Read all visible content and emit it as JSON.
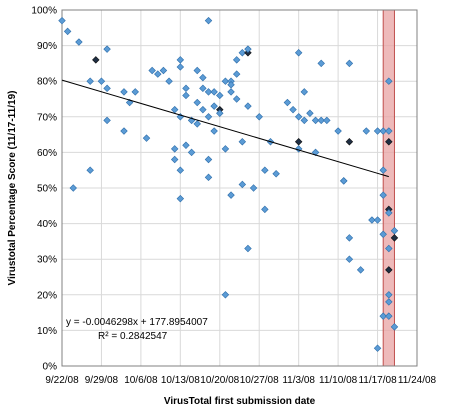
{
  "chart_data": {
    "type": "scatter",
    "title": "",
    "xlabel": "VirusTotal first submission date",
    "ylabel": "Virustotal Percentage Score (11/17-11/19)",
    "x_tick_labels": [
      "9/22/08",
      "9/29/08",
      "10/6/08",
      "10/13/08",
      "10/20/08",
      "10/27/08",
      "11/3/08",
      "11/10/08",
      "11/17/08",
      "11/24/08"
    ],
    "y_tick_labels": [
      "0%",
      "10%",
      "20%",
      "30%",
      "40%",
      "50%",
      "60%",
      "70%",
      "80%",
      "90%",
      "100%"
    ],
    "xlim": [
      "2008-09-22",
      "2008-11-24"
    ],
    "ylim": [
      0,
      100
    ],
    "grid": true,
    "legend": "none",
    "trendline": {
      "equation": "y = -0.0046298x + 177.8954007",
      "r_squared": "R² = 0.2842547",
      "start": [
        "2008-09-22",
        80.3
      ],
      "end": [
        "2008-11-19",
        53.2
      ]
    },
    "highlight_region": {
      "from": "2008-11-18",
      "to": "2008-11-20",
      "color": "#e8a3a3"
    },
    "colors": {
      "point": "#5b9bd5",
      "point_edge": "#2e6eaa",
      "dark_point": "#1f2f44",
      "region_edge": "#c0504d"
    },
    "points": [
      {
        "x": "2008-09-22",
        "y": 97
      },
      {
        "x": "2008-09-23",
        "y": 94
      },
      {
        "x": "2008-09-24",
        "y": 50
      },
      {
        "x": "2008-09-25",
        "y": 91
      },
      {
        "x": "2008-09-27",
        "y": 55
      },
      {
        "x": "2008-09-27",
        "y": 80
      },
      {
        "x": "2008-09-28",
        "y": 86,
        "dark": true
      },
      {
        "x": "2008-09-29",
        "y": 80
      },
      {
        "x": "2008-09-30",
        "y": 78
      },
      {
        "x": "2008-09-30",
        "y": 69
      },
      {
        "x": "2008-09-30",
        "y": 89
      },
      {
        "x": "2008-10-03",
        "y": 77
      },
      {
        "x": "2008-10-03",
        "y": 66
      },
      {
        "x": "2008-10-04",
        "y": 74
      },
      {
        "x": "2008-10-05",
        "y": 77
      },
      {
        "x": "2008-10-07",
        "y": 64
      },
      {
        "x": "2008-10-08",
        "y": 83
      },
      {
        "x": "2008-10-09",
        "y": 82
      },
      {
        "x": "2008-10-10",
        "y": 83
      },
      {
        "x": "2008-10-11",
        "y": 80
      },
      {
        "x": "2008-10-12",
        "y": 61
      },
      {
        "x": "2008-10-12",
        "y": 58
      },
      {
        "x": "2008-10-12",
        "y": 72
      },
      {
        "x": "2008-10-13",
        "y": 86
      },
      {
        "x": "2008-10-13",
        "y": 84
      },
      {
        "x": "2008-10-13",
        "y": 70
      },
      {
        "x": "2008-10-13",
        "y": 47
      },
      {
        "x": "2008-10-13",
        "y": 55
      },
      {
        "x": "2008-10-14",
        "y": 78
      },
      {
        "x": "2008-10-14",
        "y": 76
      },
      {
        "x": "2008-10-14",
        "y": 62
      },
      {
        "x": "2008-10-15",
        "y": 69
      },
      {
        "x": "2008-10-15",
        "y": 60
      },
      {
        "x": "2008-10-16",
        "y": 83
      },
      {
        "x": "2008-10-16",
        "y": 74
      },
      {
        "x": "2008-10-16",
        "y": 68
      },
      {
        "x": "2008-10-17",
        "y": 81
      },
      {
        "x": "2008-10-17",
        "y": 78
      },
      {
        "x": "2008-10-17",
        "y": 72
      },
      {
        "x": "2008-10-18",
        "y": 97
      },
      {
        "x": "2008-10-18",
        "y": 77
      },
      {
        "x": "2008-10-18",
        "y": 70
      },
      {
        "x": "2008-10-18",
        "y": 53
      },
      {
        "x": "2008-10-18",
        "y": 58
      },
      {
        "x": "2008-10-19",
        "y": 77
      },
      {
        "x": "2008-10-19",
        "y": 73
      },
      {
        "x": "2008-10-19",
        "y": 66
      },
      {
        "x": "2008-10-20",
        "y": 72,
        "dark": true
      },
      {
        "x": "2008-10-20",
        "y": 76
      },
      {
        "x": "2008-10-20",
        "y": 71
      },
      {
        "x": "2008-10-21",
        "y": 80
      },
      {
        "x": "2008-10-21",
        "y": 61
      },
      {
        "x": "2008-10-21",
        "y": 20
      },
      {
        "x": "2008-10-22",
        "y": 77
      },
      {
        "x": "2008-10-22",
        "y": 80
      },
      {
        "x": "2008-10-22",
        "y": 79
      },
      {
        "x": "2008-10-22",
        "y": 48
      },
      {
        "x": "2008-10-23",
        "y": 82
      },
      {
        "x": "2008-10-23",
        "y": 75
      },
      {
        "x": "2008-10-23",
        "y": 86
      },
      {
        "x": "2008-10-24",
        "y": 88
      },
      {
        "x": "2008-10-24",
        "y": 63
      },
      {
        "x": "2008-10-24",
        "y": 51
      },
      {
        "x": "2008-10-25",
        "y": 88,
        "dark": true
      },
      {
        "x": "2008-10-25",
        "y": 89
      },
      {
        "x": "2008-10-25",
        "y": 73
      },
      {
        "x": "2008-10-25",
        "y": 33
      },
      {
        "x": "2008-10-26",
        "y": 50
      },
      {
        "x": "2008-10-27",
        "y": 70
      },
      {
        "x": "2008-10-28",
        "y": 55
      },
      {
        "x": "2008-10-28",
        "y": 44
      },
      {
        "x": "2008-10-29",
        "y": 63
      },
      {
        "x": "2008-10-30",
        "y": 54
      },
      {
        "x": "2008-11-01",
        "y": 74
      },
      {
        "x": "2008-11-02",
        "y": 72
      },
      {
        "x": "2008-11-03",
        "y": 88
      },
      {
        "x": "2008-11-03",
        "y": 70
      },
      {
        "x": "2008-11-03",
        "y": 63,
        "dark": true
      },
      {
        "x": "2008-11-03",
        "y": 61
      },
      {
        "x": "2008-11-04",
        "y": 69
      },
      {
        "x": "2008-11-04",
        "y": 77
      },
      {
        "x": "2008-11-05",
        "y": 71
      },
      {
        "x": "2008-11-06",
        "y": 69
      },
      {
        "x": "2008-11-06",
        "y": 60
      },
      {
        "x": "2008-11-07",
        "y": 85
      },
      {
        "x": "2008-11-07",
        "y": 69
      },
      {
        "x": "2008-11-08",
        "y": 69
      },
      {
        "x": "2008-11-10",
        "y": 66
      },
      {
        "x": "2008-11-11",
        "y": 52
      },
      {
        "x": "2008-11-11",
        "y": 52
      },
      {
        "x": "2008-11-12",
        "y": 85
      },
      {
        "x": "2008-11-12",
        "y": 63,
        "dark": true
      },
      {
        "x": "2008-11-12",
        "y": 36
      },
      {
        "x": "2008-11-12",
        "y": 30
      },
      {
        "x": "2008-11-14",
        "y": 27
      },
      {
        "x": "2008-11-15",
        "y": 66
      },
      {
        "x": "2008-11-16",
        "y": 41
      },
      {
        "x": "2008-11-17",
        "y": 41
      },
      {
        "x": "2008-11-17",
        "y": 66
      },
      {
        "x": "2008-11-17",
        "y": 5
      },
      {
        "x": "2008-11-18",
        "y": 48
      },
      {
        "x": "2008-11-18",
        "y": 55
      },
      {
        "x": "2008-11-18",
        "y": 14
      },
      {
        "x": "2008-11-18",
        "y": 66
      },
      {
        "x": "2008-11-18",
        "y": 37
      },
      {
        "x": "2008-11-19",
        "y": 80
      },
      {
        "x": "2008-11-19",
        "y": 66
      },
      {
        "x": "2008-11-19",
        "y": 63,
        "dark": true
      },
      {
        "x": "2008-11-19",
        "y": 44,
        "dark": true
      },
      {
        "x": "2008-11-19",
        "y": 43
      },
      {
        "x": "2008-11-19",
        "y": 33
      },
      {
        "x": "2008-11-19",
        "y": 27,
        "dark": true
      },
      {
        "x": "2008-11-19",
        "y": 20
      },
      {
        "x": "2008-11-19",
        "y": 18
      },
      {
        "x": "2008-11-19",
        "y": 14
      },
      {
        "x": "2008-11-20",
        "y": 38
      },
      {
        "x": "2008-11-20",
        "y": 36,
        "dark": true
      },
      {
        "x": "2008-11-20",
        "y": 11
      }
    ]
  }
}
